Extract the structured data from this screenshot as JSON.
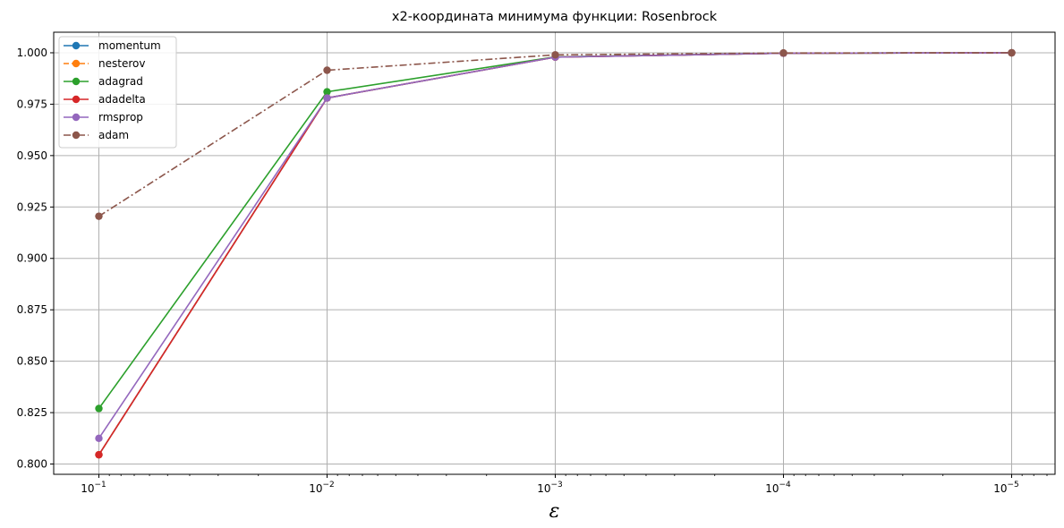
{
  "chart_data": {
    "type": "line",
    "title": "x2-координата минимума функции: Rosenbrock",
    "xlabel": "ε",
    "ylabel": "",
    "xscale": "log",
    "x_inverted": true,
    "x": [
      0.1,
      0.01,
      0.001,
      0.0001,
      1e-05
    ],
    "x_tick_labels": [
      {
        "base": "10",
        "exp": "−1"
      },
      {
        "base": "10",
        "exp": "−2"
      },
      {
        "base": "10",
        "exp": "−3"
      },
      {
        "base": "10",
        "exp": "−4"
      },
      {
        "base": "10",
        "exp": "−5"
      }
    ],
    "ylim": [
      0.795,
      1.01
    ],
    "y_ticks": [
      "0.800",
      "0.825",
      "0.850",
      "0.875",
      "0.900",
      "0.925",
      "0.950",
      "0.975",
      "1.000"
    ],
    "grid": true,
    "legend_position": "top-left",
    "series": [
      {
        "name": "momentum",
        "color": "#1f77b4",
        "dash": "solid",
        "values": [
          0.8045,
          0.978,
          0.9979,
          0.99978,
          0.99998
        ]
      },
      {
        "name": "nesterov",
        "color": "#ff7f0e",
        "dash": "dashed",
        "values": [
          0.8045,
          0.978,
          0.9979,
          0.99978,
          0.99998
        ]
      },
      {
        "name": "adagrad",
        "color": "#2ca02c",
        "dash": "solid",
        "values": [
          0.827,
          0.981,
          0.998,
          0.9998,
          0.99998
        ]
      },
      {
        "name": "adadelta",
        "color": "#d62728",
        "dash": "solid",
        "values": [
          0.8045,
          0.978,
          0.9979,
          0.99978,
          0.99998
        ]
      },
      {
        "name": "rmsprop",
        "color": "#9467bd",
        "dash": "solid",
        "values": [
          0.8125,
          0.978,
          0.9979,
          0.99978,
          0.99998
        ]
      },
      {
        "name": "adam",
        "color": "#8c564b",
        "dash": "dashdot",
        "values": [
          0.9205,
          0.9915,
          0.999,
          0.9999,
          0.99999
        ]
      }
    ]
  }
}
